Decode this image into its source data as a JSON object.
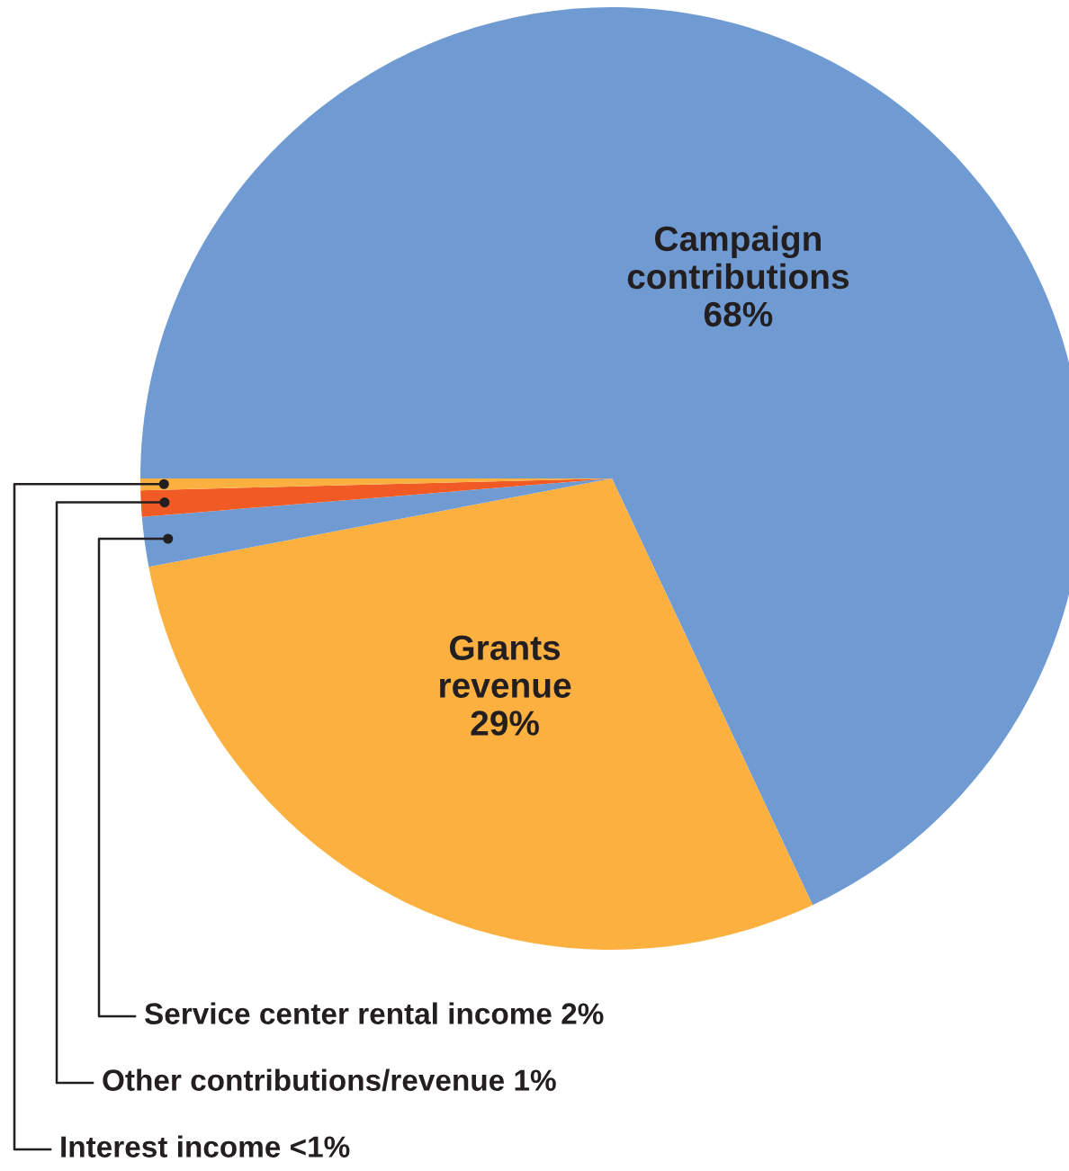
{
  "chart_data": {
    "type": "pie",
    "categories": [
      "Campaign\ncontributions",
      "Grants\nrevenue",
      "Service center rental income",
      "Other contributions/revenue",
      "Interest income"
    ],
    "values": [
      68,
      29,
      1.7,
      0.9,
      0.4
    ],
    "value_labels": [
      "68%",
      "29%",
      "2%",
      "1%",
      "<1%"
    ],
    "colors": [
      "#6f9bd2",
      "#fbb040",
      "#6f9bd2",
      "#f15a24",
      "#fbb040"
    ],
    "legend": false
  }
}
